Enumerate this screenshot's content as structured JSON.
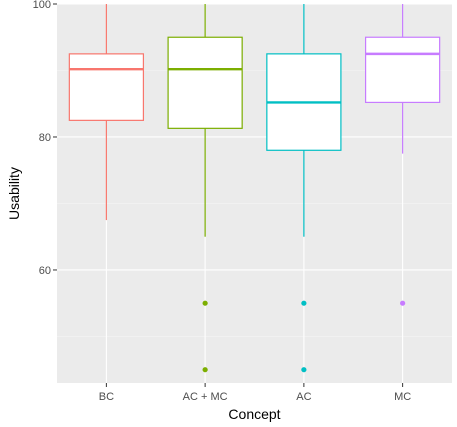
{
  "chart_data": {
    "type": "boxplot",
    "xlabel": "Concept",
    "ylabel": "Usability",
    "ylim": [
      43,
      100
    ],
    "y_ticks": [
      60,
      80,
      100
    ],
    "y_minor_ticks": [
      50,
      70,
      90
    ],
    "grid": true,
    "legend": "none",
    "categories": [
      "BC",
      "AC + MC",
      "AC",
      "MC"
    ],
    "boxes": [
      {
        "category": "BC",
        "color": "#F8766D",
        "whisker_low": 67.5,
        "q1": 82.5,
        "median": 90.2,
        "q3": 92.5,
        "whisker_high": 100,
        "outliers": []
      },
      {
        "category": "AC + MC",
        "color": "#7CAE00",
        "whisker_low": 65,
        "q1": 81.3,
        "median": 90.2,
        "q3": 95,
        "whisker_high": 100,
        "outliers": [
          55,
          45
        ]
      },
      {
        "category": "AC",
        "color": "#00BFC4",
        "whisker_low": 65,
        "q1": 78,
        "median": 85.2,
        "q3": 92.5,
        "whisker_high": 100,
        "outliers": [
          55,
          45
        ]
      },
      {
        "category": "MC",
        "color": "#C77CFF",
        "whisker_low": 77.5,
        "q1": 85.2,
        "median": 92.5,
        "q3": 95,
        "whisker_high": 100,
        "outliers": [
          55
        ]
      }
    ]
  },
  "theme": {
    "panel_bg": "#EBEBEB",
    "grid_major": "#FFFFFF",
    "grid_minor": "#F5F5F5"
  }
}
